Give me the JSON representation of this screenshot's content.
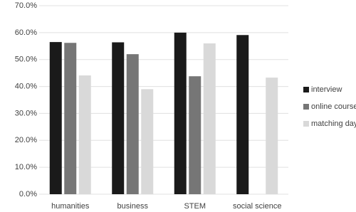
{
  "chart_data": {
    "type": "bar",
    "categories": [
      "humanities",
      "business",
      "STEM",
      "social science"
    ],
    "series": [
      {
        "name": "interview",
        "color": "#1a1a1a",
        "values": [
          56.5,
          56.4,
          60.0,
          59.1
        ]
      },
      {
        "name": "online course",
        "color": "#767676",
        "values": [
          56.2,
          52.0,
          43.8,
          null
        ]
      },
      {
        "name": "matching day",
        "color": "#d9d9d9",
        "values": [
          44.1,
          39.0,
          56.0,
          43.3
        ]
      }
    ],
    "ylim": [
      0,
      70
    ],
    "yticks": [
      {
        "value": 0,
        "label": "0.0%"
      },
      {
        "value": 10,
        "label": "10.0%"
      },
      {
        "value": 20,
        "label": "20.0%"
      },
      {
        "value": 30,
        "label": "30.0%"
      },
      {
        "value": 40,
        "label": "40.0%"
      },
      {
        "value": 50,
        "label": "50.0%"
      },
      {
        "value": 60,
        "label": "60.0%"
      },
      {
        "value": 70,
        "label": "70.0%"
      }
    ],
    "grid": true,
    "legend": "right"
  }
}
